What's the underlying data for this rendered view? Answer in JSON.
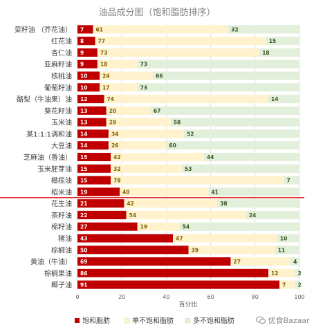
{
  "chart_data": {
    "type": "bar",
    "orientation": "horizontal",
    "stacked": true,
    "title": "油品成分图（饱和脂肪排序）",
    "xlabel": "百分比",
    "ylabel": "",
    "xlim": [
      0,
      100
    ],
    "xticks": [
      0,
      20,
      40,
      60,
      80,
      100
    ],
    "grid": true,
    "legend_position": "bottom",
    "categories": [
      "菜籽油 （芥花油）",
      "红花油",
      "杏仁油",
      "亚麻籽油",
      "核桃油",
      "葡萄籽油",
      "酪梨（牛油果）油",
      "葵花籽油",
      "玉米油",
      "某1:1:1调和油",
      "大豆油",
      "芝麻油（香油）",
      "玉米胚芽油",
      "橄榄油",
      "稻米油",
      "花生油",
      "茶籽油",
      "棉籽油",
      "猪油",
      "棕榈油",
      "黄油（牛油）",
      "棕榈果油",
      "椰子油"
    ],
    "series": [
      {
        "name": "饱和脂肪",
        "color": "#c00000",
        "label_color": "#ffffff",
        "values": [
          7,
          8,
          9,
          9,
          10,
          10,
          12,
          13,
          13,
          14,
          14,
          15,
          15,
          15,
          19,
          21,
          22,
          27,
          43,
          50,
          69,
          86,
          91
        ]
      },
      {
        "name": "单不饱和脂肪",
        "color": "#fff2cc",
        "label_color": "#7f6000",
        "values": [
          61,
          77,
          73,
          18,
          24,
          17,
          74,
          20,
          29,
          34,
          26,
          42,
          32,
          78,
          40,
          42,
          54,
          19,
          47,
          39,
          27,
          12,
          7
        ]
      },
      {
        "name": "多不饱和脂肪",
        "color": "#e2efda",
        "label_color": "#375623",
        "values": [
          32,
          15,
          18,
          73,
          66,
          73,
          14,
          67,
          58,
          52,
          60,
          44,
          53,
          7,
          41,
          38,
          24,
          54,
          10,
          11,
          4,
          2,
          2
        ]
      }
    ],
    "divider_after_category": "稻米油"
  },
  "watermark": {
    "icon": "wechat-icon",
    "text": "优食Bazaar"
  }
}
